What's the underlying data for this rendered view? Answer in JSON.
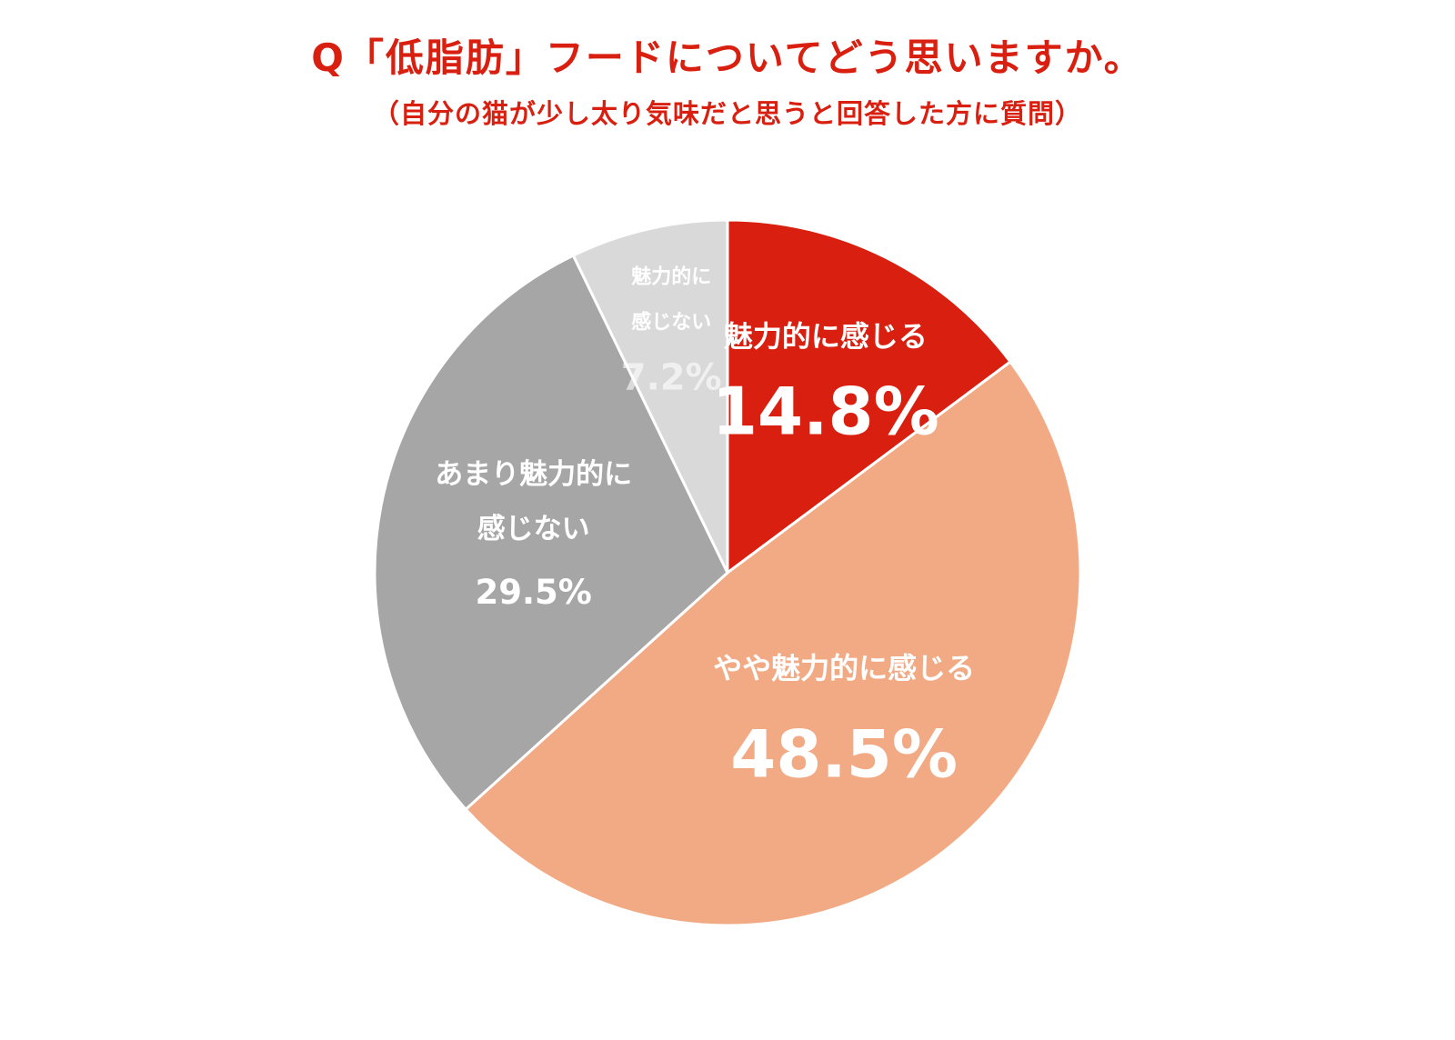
{
  "title": "Q「低脂肪」フードについてどう思いますか。",
  "subtitle": "（自分の猫が少し太り気味だと思うと回答した方に質問）",
  "colors": {
    "title": "#d91f0f",
    "label_text": "#ffffff",
    "slice_border": "#ffffff"
  },
  "chart_data": {
    "type": "pie",
    "start": "12 o'clock",
    "direction": "clockwise",
    "slices": [
      {
        "label_lines": [
          "魅力的に感じる"
        ],
        "value": 14.8,
        "value_label": "14.8%",
        "color": "#d91f0f"
      },
      {
        "label_lines": [
          "やや魅力的に感じる"
        ],
        "value": 48.5,
        "value_label": "48.5%",
        "color": "#f2aa85"
      },
      {
        "label_lines": [
          "あまり魅力的に",
          "感じない"
        ],
        "value": 29.5,
        "value_label": "29.5%",
        "color": "#a6a6a6"
      },
      {
        "label_lines": [
          "魅力的に",
          "感じない"
        ],
        "value": 7.2,
        "value_label": "7.2%",
        "color": "#d9d9d9"
      }
    ]
  }
}
